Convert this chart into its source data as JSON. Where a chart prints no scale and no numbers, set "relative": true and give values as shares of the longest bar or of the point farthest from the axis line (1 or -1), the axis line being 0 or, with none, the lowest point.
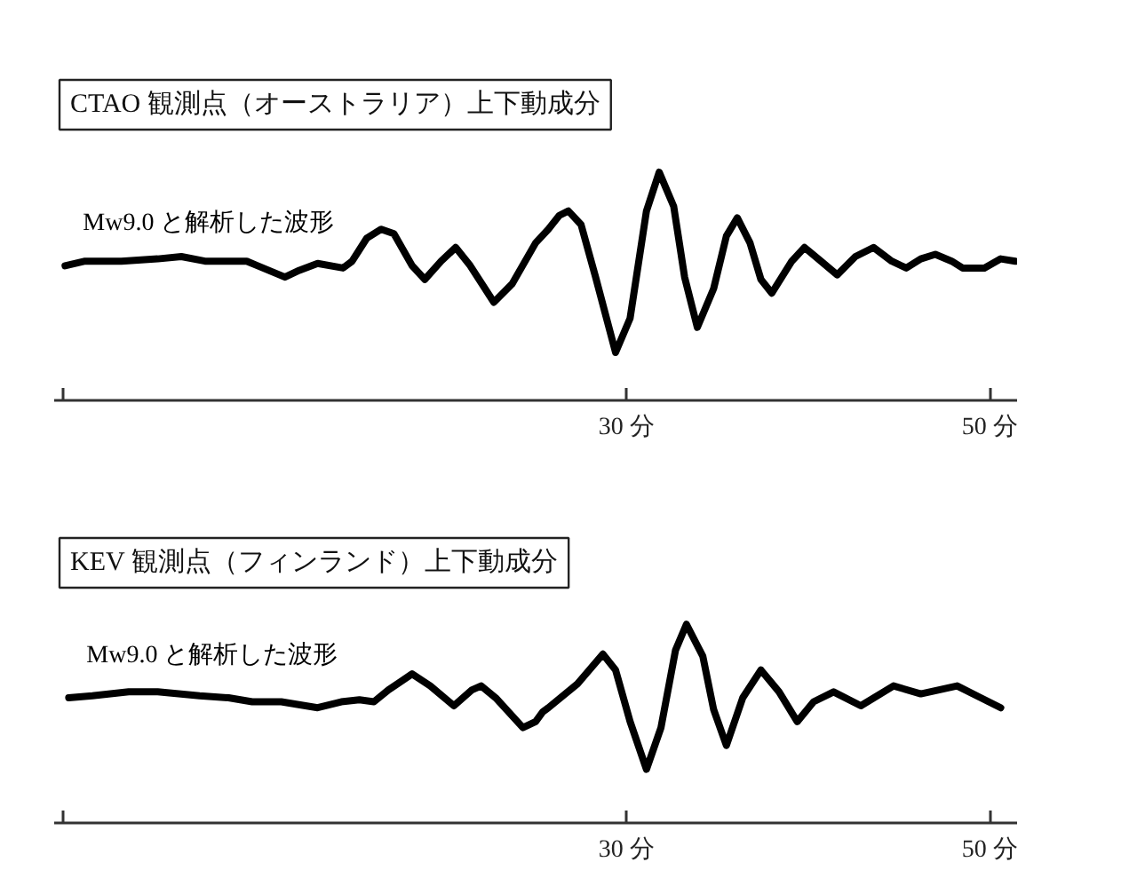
{
  "chart_data": [
    {
      "type": "line",
      "title": "CTAO 観測点（オーストラリア）上下動成分",
      "relative": true,
      "xlim": [
        -1.5,
        51.5
      ],
      "xticks": [
        {
          "value": -1,
          "label": null
        },
        {
          "value": 30,
          "label": "30 分"
        },
        {
          "value": 50,
          "label": "50 分"
        }
      ],
      "x": [
        -0.9,
        0.2,
        2.2,
        4.2,
        5.5,
        6.8,
        7.1,
        9.1,
        9.7,
        11.2,
        12.0,
        13.0,
        14.4,
        14.9,
        15.7,
        16.5,
        17.2,
        18.2,
        18.9,
        19.8,
        20.6,
        21.4,
        22.7,
        23.7,
        25.0,
        25.7,
        26.3,
        26.8,
        27.5,
        28.3,
        29.4,
        30.2,
        31.1,
        31.8,
        32.6,
        33.2,
        33.9,
        34.8,
        35.5,
        36.1,
        36.8,
        37.4,
        38.0,
        39.1,
        39.8,
        40.7,
        41.6,
        42.6,
        43.6,
        44.6,
        45.4,
        46.2,
        47.0,
        47.9,
        48.5,
        49.7,
        50.6,
        51.4
      ],
      "series": [
        {
          "name": "Mw9.0 と解析した波形",
          "color": "#000000",
          "values": [
            0.59,
            0.61,
            0.61,
            0.62,
            0.63,
            0.61,
            0.61,
            0.61,
            0.59,
            0.54,
            0.57,
            0.6,
            0.58,
            0.61,
            0.71,
            0.75,
            0.73,
            0.59,
            0.53,
            0.61,
            0.67,
            0.59,
            0.43,
            0.51,
            0.69,
            0.75,
            0.81,
            0.83,
            0.77,
            0.54,
            0.21,
            0.36,
            0.83,
            1,
            0.85,
            0.54,
            0.32,
            0.49,
            0.72,
            0.8,
            0.69,
            0.53,
            0.47,
            0.61,
            0.67,
            0.61,
            0.55,
            0.63,
            0.67,
            0.61,
            0.58,
            0.62,
            0.64,
            0.61,
            0.58,
            0.58,
            0.62,
            0.61
          ]
        }
      ]
    },
    {
      "type": "line",
      "title": "KEV 観測点（フィンランド）上下動成分",
      "relative": true,
      "xlim": [
        -1.5,
        51.5
      ],
      "xticks": [
        {
          "value": -1,
          "label": null
        },
        {
          "value": 30,
          "label": "30 分"
        },
        {
          "value": 50,
          "label": "50 分"
        }
      ],
      "x": [
        -0.7,
        0.6,
        2.6,
        4.2,
        6.5,
        8.1,
        9.4,
        11.0,
        13.0,
        14.3,
        15.3,
        16.1,
        16.9,
        18.2,
        19.2,
        20.5,
        21.5,
        22.0,
        22.8,
        24.3,
        25.0,
        25.4,
        25.7,
        27.3,
        28.7,
        29.4,
        30.2,
        31.1,
        31.9,
        32.7,
        33.3,
        34.2,
        34.8,
        35.5,
        36.4,
        37.4,
        38.4,
        39.4,
        40.3,
        41.4,
        42.9,
        44.7,
        46.2,
        48.2,
        49.5,
        50.6
      ],
      "series": [
        {
          "name": "Mw9.0 と解析した波形",
          "color": "#000000",
          "values": [
            0.63,
            0.64,
            0.66,
            0.66,
            0.64,
            0.63,
            0.61,
            0.61,
            0.58,
            0.61,
            0.62,
            0.61,
            0.67,
            0.75,
            0.69,
            0.59,
            0.67,
            0.69,
            0.63,
            0.48,
            0.51,
            0.56,
            0.58,
            0.7,
            0.85,
            0.77,
            0.51,
            0.27,
            0.48,
            0.87,
            1,
            0.84,
            0.57,
            0.39,
            0.63,
            0.77,
            0.66,
            0.51,
            0.61,
            0.66,
            0.59,
            0.69,
            0.65,
            0.69,
            0.63,
            0.58
          ]
        }
      ]
    }
  ]
}
